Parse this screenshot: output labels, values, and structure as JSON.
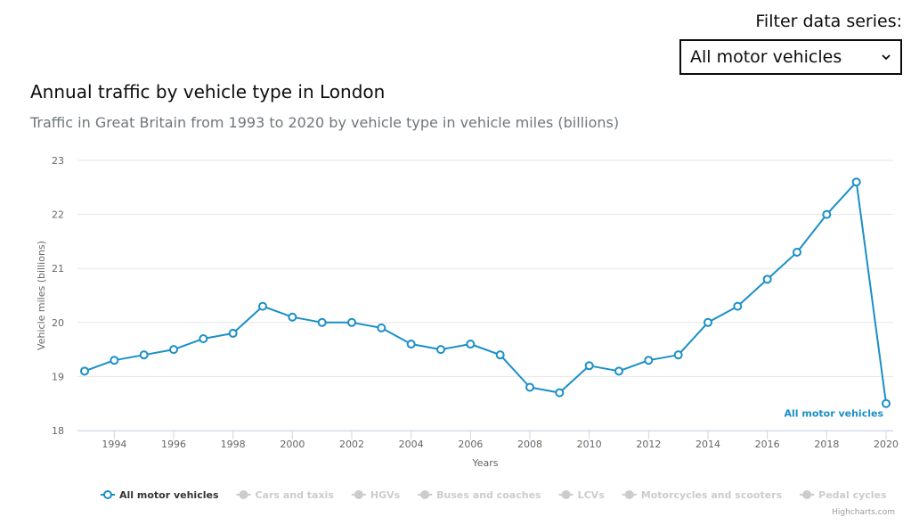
{
  "filter": {
    "label": "Filter data series:",
    "selected": "All motor vehicles"
  },
  "credits": "Highcharts.com",
  "chart_data": {
    "type": "line",
    "title": "Annual traffic by vehicle type in London",
    "subtitle": "Traffic in Great Britain from 1993 to 2020 by vehicle type in vehicle miles (billions)",
    "xlabel": "Years",
    "ylabel": "Vehicle miles (billions)",
    "xlim": [
      1993,
      2020
    ],
    "ylim": [
      18,
      23
    ],
    "xticks": [
      1994,
      1996,
      1998,
      2000,
      2002,
      2004,
      2006,
      2008,
      2010,
      2012,
      2014,
      2016,
      2018,
      2020
    ],
    "yticks": [
      18,
      19,
      20,
      21,
      22,
      23
    ],
    "grid": true,
    "legend_position": "bottom",
    "series": [
      {
        "name": "All motor vehicles",
        "color": "#1a8fc6",
        "visible": true,
        "x": [
          1993,
          1994,
          1995,
          1996,
          1997,
          1998,
          1999,
          2000,
          2001,
          2002,
          2003,
          2004,
          2005,
          2006,
          2007,
          2008,
          2009,
          2010,
          2011,
          2012,
          2013,
          2014,
          2015,
          2016,
          2017,
          2018,
          2019,
          2020
        ],
        "y": [
          19.1,
          19.3,
          19.4,
          19.5,
          19.7,
          19.8,
          20.3,
          20.1,
          20.0,
          20.0,
          19.9,
          19.6,
          19.5,
          19.6,
          19.4,
          18.8,
          18.7,
          19.2,
          19.1,
          19.3,
          19.4,
          20.0,
          20.3,
          20.8,
          21.3,
          22.0,
          22.6,
          18.5
        ]
      },
      {
        "name": "Cars and taxis",
        "visible": false
      },
      {
        "name": "HGVs",
        "visible": false
      },
      {
        "name": "Buses and coaches",
        "visible": false
      },
      {
        "name": "LCVs",
        "visible": false
      },
      {
        "name": "Motorcycles and scooters",
        "visible": false
      },
      {
        "name": "Pedal cycles",
        "visible": false
      }
    ]
  }
}
